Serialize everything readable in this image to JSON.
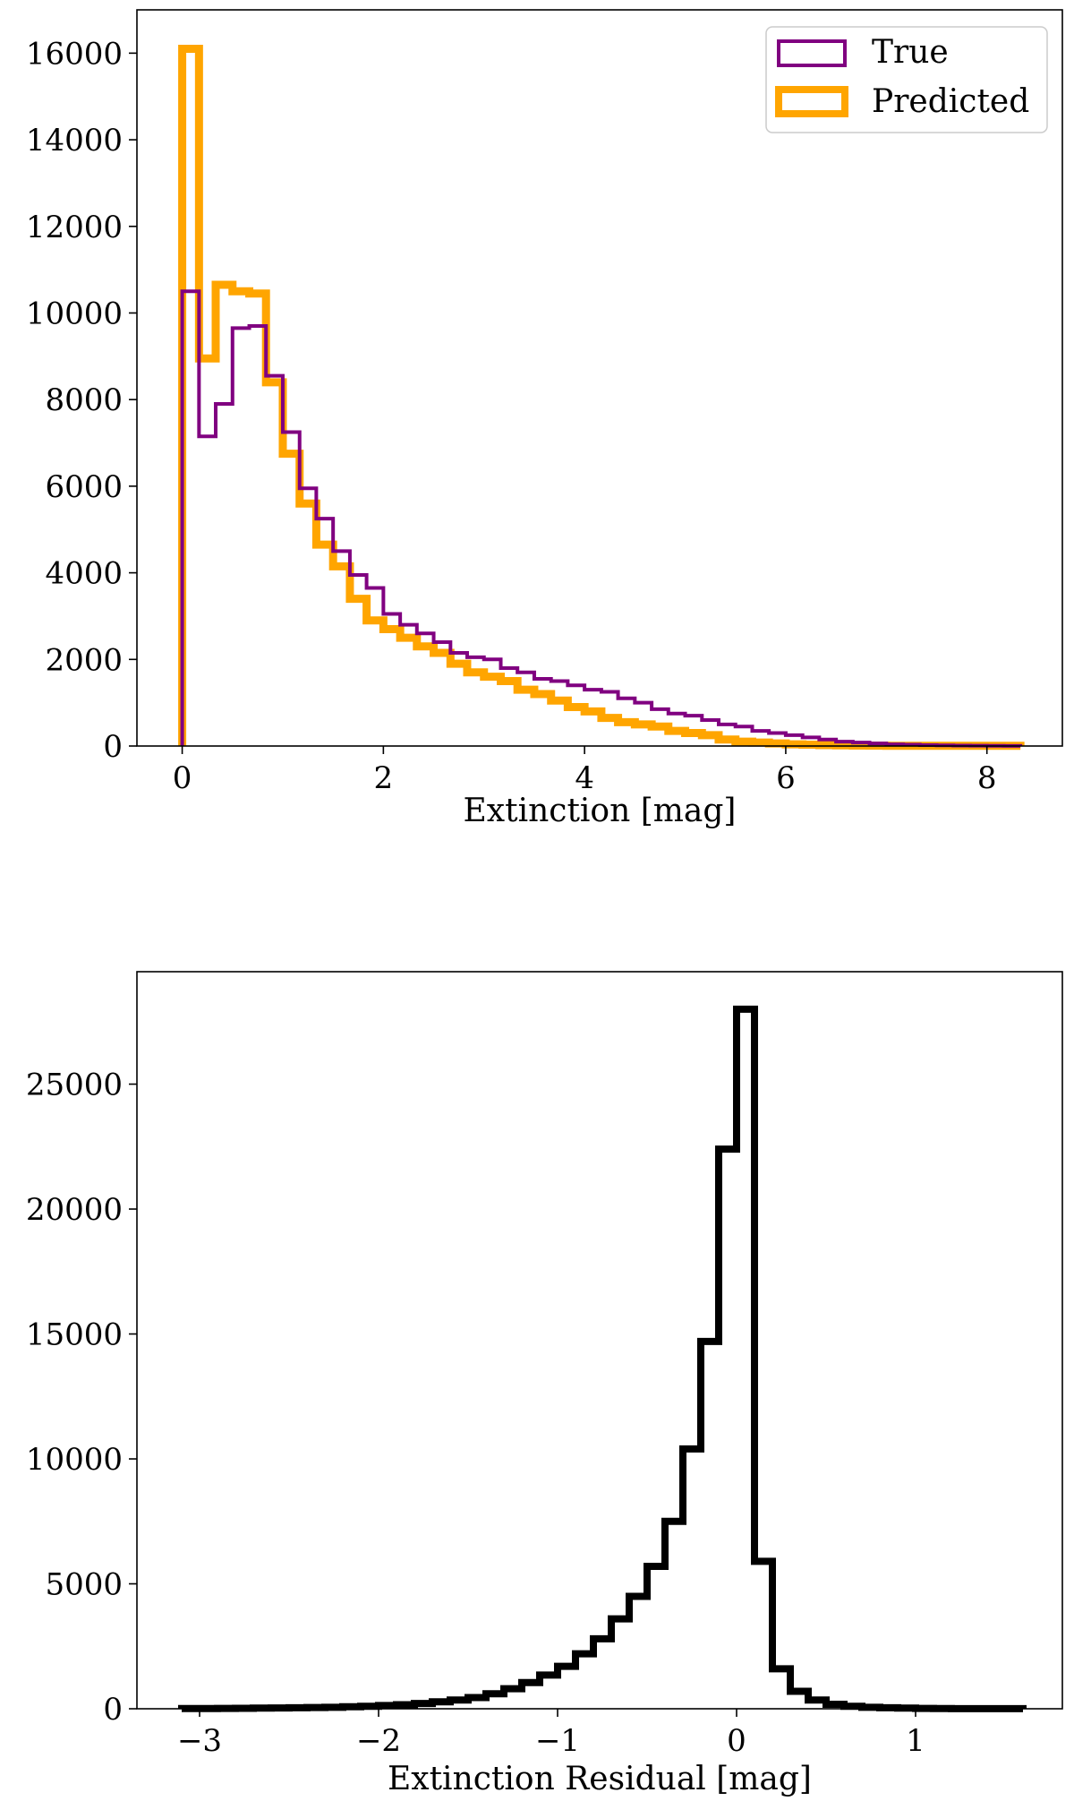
{
  "chart_data": [
    {
      "type": "histogram",
      "xlabel": "Extinction [mag]",
      "ylabel": "",
      "xlim": [
        -0.45,
        8.75
      ],
      "ylim": [
        0,
        17000
      ],
      "xticks": [
        0,
        2,
        4,
        6,
        8
      ],
      "yticks": [
        0,
        2000,
        4000,
        6000,
        8000,
        10000,
        12000,
        14000,
        16000
      ],
      "grid": false,
      "legend": {
        "placement": "top-right"
      },
      "series": [
        {
          "name": "True",
          "color": "#800080",
          "edges": [
            0,
            0.167,
            0.333,
            0.5,
            0.667,
            0.833,
            1.0,
            1.167,
            1.333,
            1.5,
            1.667,
            1.833,
            2.0,
            2.167,
            2.333,
            2.5,
            2.667,
            2.833,
            3.0,
            3.167,
            3.333,
            3.5,
            3.667,
            3.833,
            4.0,
            4.167,
            4.333,
            4.5,
            4.667,
            4.833,
            5.0,
            5.167,
            5.333,
            5.5,
            5.667,
            5.833,
            6.0,
            6.167,
            6.333,
            6.5,
            6.667,
            6.833,
            7.0,
            7.167,
            7.333,
            7.5,
            7.667,
            7.833,
            8.0,
            8.167,
            8.333
          ],
          "counts": [
            10500,
            7150,
            7900,
            9650,
            9700,
            8550,
            7250,
            5950,
            5250,
            4500,
            3950,
            3650,
            3050,
            2800,
            2600,
            2400,
            2150,
            2050,
            2000,
            1800,
            1700,
            1550,
            1500,
            1400,
            1300,
            1250,
            1100,
            1000,
            850,
            750,
            700,
            600,
            500,
            450,
            350,
            300,
            250,
            200,
            150,
            100,
            80,
            60,
            40,
            30,
            20,
            15,
            10,
            8,
            5,
            3
          ]
        },
        {
          "name": "Predicted",
          "color": "#FFA500",
          "edges": [
            0,
            0.167,
            0.333,
            0.5,
            0.667,
            0.833,
            1.0,
            1.167,
            1.333,
            1.5,
            1.667,
            1.833,
            2.0,
            2.167,
            2.333,
            2.5,
            2.667,
            2.833,
            3.0,
            3.167,
            3.333,
            3.5,
            3.667,
            3.833,
            4.0,
            4.167,
            4.333,
            4.5,
            4.667,
            4.833,
            5.0,
            5.167,
            5.333,
            5.5,
            5.667,
            5.833,
            6.0,
            6.167,
            6.333,
            6.5,
            6.667,
            6.833,
            7.0,
            7.167,
            7.333,
            7.5,
            7.667,
            7.833,
            8.0,
            8.167,
            8.333
          ],
          "counts": [
            16100,
            8950,
            10650,
            10500,
            10450,
            8400,
            6750,
            5600,
            4650,
            4150,
            3400,
            2900,
            2700,
            2500,
            2300,
            2150,
            1900,
            1700,
            1600,
            1500,
            1300,
            1200,
            1050,
            900,
            800,
            650,
            550,
            500,
            450,
            350,
            300,
            250,
            150,
            100,
            80,
            60,
            40,
            30,
            20,
            15,
            10,
            8,
            5,
            5,
            5,
            5,
            5,
            5,
            5,
            5
          ]
        }
      ]
    },
    {
      "type": "histogram",
      "xlabel": "Extinction Residual [mag]",
      "ylabel": "",
      "xlim": [
        -3.35,
        1.82
      ],
      "ylim": [
        0,
        29500
      ],
      "xticks": [
        -3,
        -2,
        -1,
        0,
        1
      ],
      "xticklabels": [
        "−3",
        "−2",
        "−1",
        "0",
        "1"
      ],
      "yticks": [
        0,
        5000,
        10000,
        15000,
        20000,
        25000
      ],
      "grid": false,
      "series": [
        {
          "name": "",
          "color": "#000000",
          "edges": [
            -3.1,
            -3.0,
            -2.9,
            -2.8,
            -2.7,
            -2.6,
            -2.5,
            -2.4,
            -2.3,
            -2.2,
            -2.1,
            -2.0,
            -1.9,
            -1.8,
            -1.7,
            -1.6,
            -1.5,
            -1.4,
            -1.3,
            -1.2,
            -1.1,
            -1.0,
            -0.9,
            -0.8,
            -0.7,
            -0.6,
            -0.5,
            -0.4,
            -0.3,
            -0.2,
            -0.1,
            0.0,
            0.1,
            0.2,
            0.3,
            0.4,
            0.5,
            0.6,
            0.7,
            0.8,
            0.9,
            1.0,
            1.1,
            1.2,
            1.3,
            1.4,
            1.5,
            1.6
          ],
          "counts": [
            10,
            10,
            15,
            20,
            25,
            30,
            40,
            50,
            60,
            80,
            100,
            130,
            160,
            210,
            280,
            350,
            450,
            600,
            800,
            1050,
            1350,
            1700,
            2200,
            2800,
            3600,
            4500,
            5700,
            7500,
            10400,
            14700,
            22400,
            28000,
            5900,
            1600,
            700,
            350,
            180,
            100,
            60,
            40,
            25,
            15,
            10,
            5,
            5,
            5,
            5
          ]
        }
      ]
    }
  ]
}
